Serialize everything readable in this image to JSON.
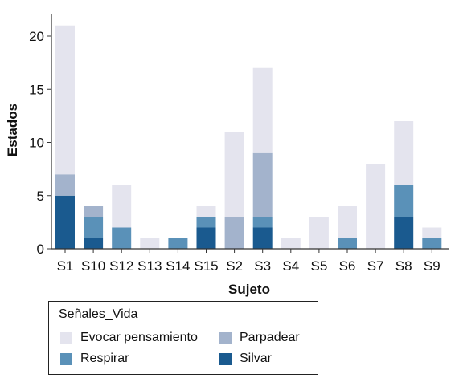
{
  "chart_data": {
    "type": "bar",
    "stacked": true,
    "xlabel": "Sujeto",
    "ylabel": "Estados",
    "ylim": [
      0,
      22
    ],
    "yticks": [
      0,
      5,
      10,
      15,
      20
    ],
    "categories": [
      "S1",
      "S10",
      "S12",
      "S13",
      "S14",
      "S15",
      "S2",
      "S3",
      "S4",
      "S5",
      "S6",
      "S7",
      "S8",
      "S9"
    ],
    "series": [
      {
        "name": "Silvar",
        "color": "#1a5a8f",
        "values": [
          5,
          1,
          0,
          0,
          0,
          2,
          0,
          2,
          0,
          0,
          0,
          0,
          3,
          0
        ]
      },
      {
        "name": "Respirar",
        "color": "#5a91b8",
        "values": [
          0,
          2,
          2,
          0,
          1,
          1,
          0,
          1,
          0,
          0,
          1,
          0,
          3,
          1
        ]
      },
      {
        "name": "Parpadear",
        "color": "#a3b3cc",
        "values": [
          2,
          1,
          0,
          0,
          0,
          0,
          3,
          6,
          0,
          0,
          0,
          0,
          0,
          0
        ]
      },
      {
        "name": "Evocar pensamiento",
        "color": "#e4e4ee",
        "values": [
          14,
          0,
          4,
          1,
          0,
          1,
          8,
          8,
          1,
          3,
          3,
          8,
          6,
          1
        ]
      }
    ],
    "legend": {
      "title": "Señales_Vida",
      "placement": "bottom-left",
      "entries": [
        "Evocar pensamiento",
        "Parpadear",
        "Respirar",
        "Silvar"
      ]
    },
    "grid": false
  }
}
